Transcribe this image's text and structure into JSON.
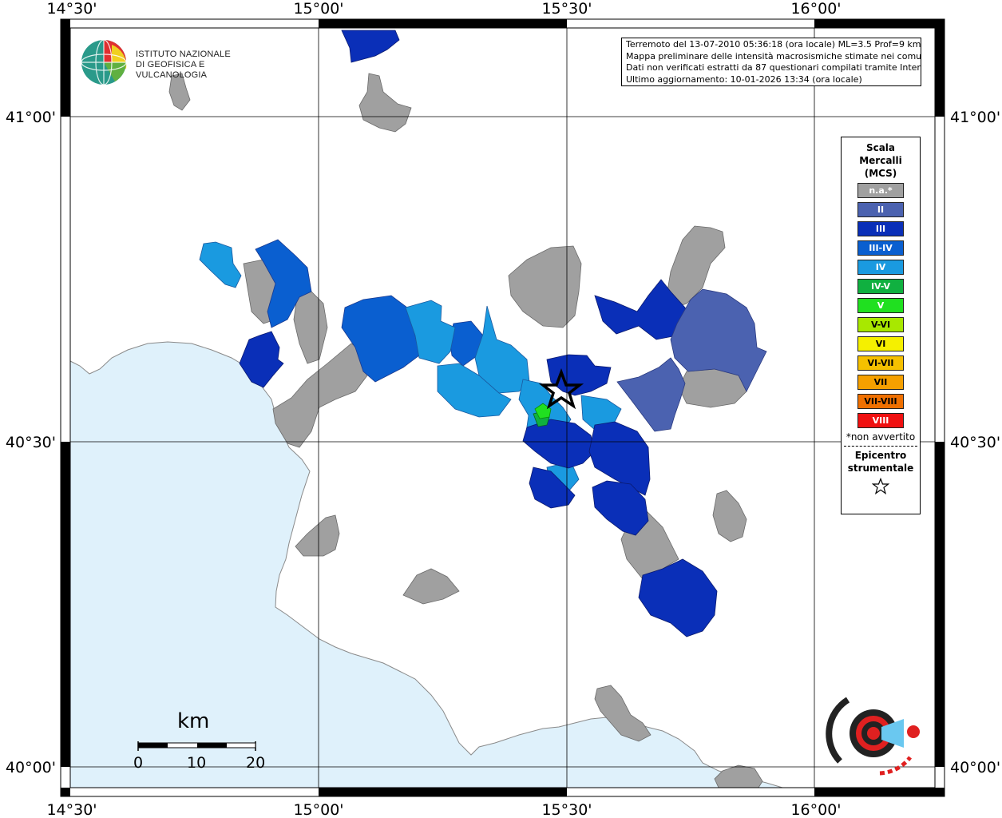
{
  "header": {
    "line1": "Terremoto del 13-07-2010 05:36:18 (ora locale) ML=3.5 Prof=9 km",
    "line2": "Mappa preliminare delle intensità macrosismiche stimate nei comuni",
    "line3": "Dati non verificati estratti da 87 questionari compilati tramite Internet.",
    "line4": "Ultimo aggiornamento: 10-01-2026 13:34 (ora locale)"
  },
  "logo": {
    "line1": "ISTITUTO NAZIONALE",
    "line2": "DI GEOFISICA E VULCANOLOGIA"
  },
  "axes": {
    "top_labels": [
      "14°30'",
      "15°00'",
      "15°30'",
      "16°00'"
    ],
    "bottom_labels": [
      "14°30'",
      "15°00'",
      "15°30'",
      "16°00'"
    ],
    "left_labels": [
      "41°00'",
      "40°30'",
      "40°00'"
    ],
    "right_labels": [
      "41°00'",
      "40°30'",
      "40°00'"
    ]
  },
  "legend": {
    "title1": "Scala",
    "title2": "Mercalli",
    "title3": "(MCS)",
    "items": [
      {
        "label": "n.a.*",
        "color": "#a0a0a0"
      },
      {
        "label": "II",
        "color": "#4b62b0"
      },
      {
        "label": "III",
        "color": "#0a2fb8"
      },
      {
        "label": "III-IV",
        "color": "#0a5fd0"
      },
      {
        "label": "IV",
        "color": "#1a9ae0"
      },
      {
        "label": "IV-V",
        "color": "#10b040"
      },
      {
        "label": "V",
        "color": "#20e020"
      },
      {
        "label": "V-VI",
        "color": "#a8e800"
      },
      {
        "label": "VI",
        "color": "#f5f000"
      },
      {
        "label": "VI-VII",
        "color": "#f5c000"
      },
      {
        "label": "VII",
        "color": "#f5a000"
      },
      {
        "label": "VII-VIII",
        "color": "#f07000"
      },
      {
        "label": "VIII",
        "color": "#f01010"
      }
    ],
    "note": "*non avvertito",
    "epicentre1": "Epicentro",
    "epicentre2": "strumentale"
  },
  "scale_bar": {
    "unit": "km",
    "labels": [
      "0",
      "10",
      "20"
    ]
  },
  "colors": {
    "sea": "#dff1fb",
    "na": "#a0a0a0",
    "II": "#4b62b0",
    "III": "#0a2fb8",
    "III-IV": "#0a5fd0",
    "IV": "#1a9ae0",
    "IV-V": "#10b040",
    "V": "#20e020"
  },
  "epicenter": {
    "lon": 15.49,
    "lat": 40.58
  }
}
